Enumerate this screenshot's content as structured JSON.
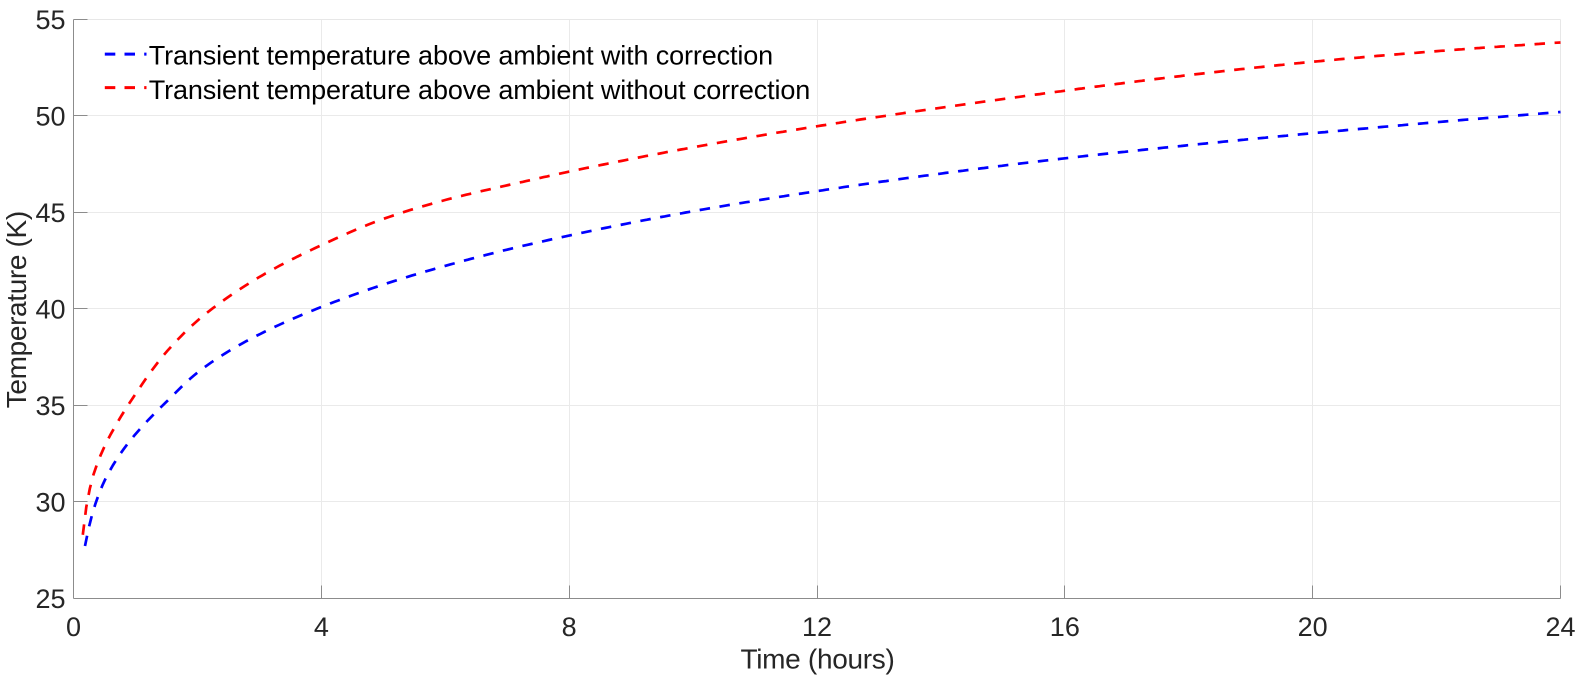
{
  "chart_data": {
    "type": "line",
    "title": "",
    "xlabel": "Time (hours)",
    "ylabel": "Temperature (K)",
    "xlim": [
      0,
      24
    ],
    "ylim": [
      25,
      55
    ],
    "xticks": [
      0,
      4,
      8,
      12,
      16,
      20,
      24
    ],
    "yticks": [
      25,
      30,
      35,
      40,
      45,
      50,
      55
    ],
    "grid": true,
    "legend_position": "top-left",
    "series": [
      {
        "name": "Transient temperature above ambient with correction",
        "color": "#0000ff",
        "line_style": "dashed",
        "x": [
          0.185,
          0.25,
          0.35,
          0.5,
          0.7,
          1.0,
          1.5,
          2.0,
          2.5,
          3.0,
          4.0,
          5.0,
          6.0,
          7.0,
          8.0,
          10.0,
          12.0,
          14.0,
          16.0,
          18.0,
          20.0,
          22.0,
          24.0
        ],
        "y": [
          27.72,
          28.72,
          29.87,
          31.09,
          32.23,
          33.51,
          35.19,
          36.7,
          37.8,
          38.68,
          40.1,
          41.26,
          42.23,
          43.07,
          43.8,
          45.06,
          46.1,
          47.01,
          47.8,
          48.48,
          49.1,
          49.67,
          50.2
        ]
      },
      {
        "name": "Transient temperature above ambient without correction",
        "color": "#ff0000",
        "line_style": "dashed",
        "x": [
          0.15,
          0.2,
          0.3,
          0.4,
          0.5,
          0.7,
          1.0,
          1.5,
          2.0,
          2.5,
          3.0,
          4.0,
          5.0,
          6.0,
          7.0,
          8.0,
          10.0,
          12.0,
          14.0,
          16.0,
          18.0,
          20.0,
          22.0,
          24.0
        ],
        "y": [
          28.3,
          29.6,
          31.16,
          32.13,
          32.87,
          34.07,
          35.59,
          37.77,
          39.39,
          40.62,
          41.65,
          43.3,
          44.66,
          45.64,
          46.4,
          47.11,
          48.37,
          49.46,
          50.42,
          51.3,
          52.11,
          52.8,
          53.35,
          53.8
        ]
      }
    ]
  },
  "styles": {
    "background": "#ffffff",
    "axis_line_color": "#8c8c8c",
    "far_box_color": "#e7e7e7",
    "grid_color": "#eaeaea",
    "tick_label_color": "#262626",
    "axis_label_color": "#262626",
    "legend_text_color": "#000000"
  }
}
